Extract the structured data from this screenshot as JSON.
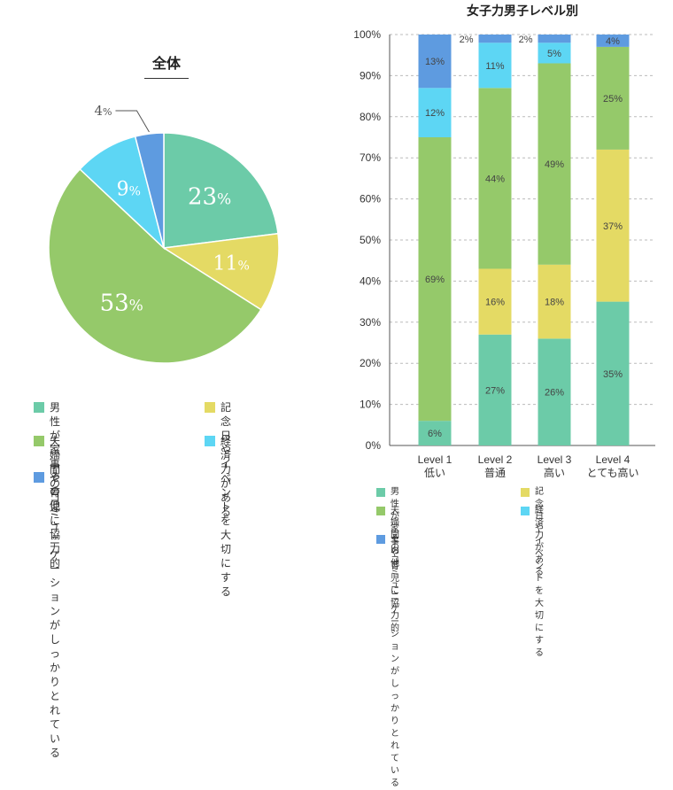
{
  "chart_data": [
    {
      "type": "pie",
      "title": "全体",
      "categories": [
        "男性が家事や育児に協力的",
        "記念日やイベントを大切にする",
        "夫婦間のコミュニケーションがしっかりとれている",
        "経済力がある",
        "その他"
      ],
      "values": [
        23,
        11,
        53,
        9,
        4
      ],
      "labels": [
        "23",
        "11",
        "53",
        "9",
        "4"
      ],
      "unit": "%",
      "colors": [
        "#6ccba8",
        "#e4da64",
        "#95c96a",
        "#5dd6f4",
        "#5e9be0"
      ]
    },
    {
      "type": "bar",
      "stacked": true,
      "title": "女子力男子レベル別",
      "categories": [
        {
          "line1": "Level 1",
          "line2": "低い"
        },
        {
          "line1": "Level 2",
          "line2": "普通"
        },
        {
          "line1": "Level 3",
          "line2": "高い"
        },
        {
          "line1": "Level 4",
          "line2": "とても高い"
        }
      ],
      "series": [
        {
          "name": "男性が家事や育児に協力的",
          "values": [
            6,
            27,
            26,
            35
          ]
        },
        {
          "name": "記念日やイベントを大切にする",
          "values": [
            0,
            16,
            18,
            37
          ]
        },
        {
          "name": "夫婦間のコミュニケーションがしっかりとれている",
          "values": [
            69,
            44,
            49,
            25
          ]
        },
        {
          "name": "経済力がある",
          "values": [
            12,
            11,
            5,
            0
          ]
        },
        {
          "name": "その他",
          "values": [
            13,
            2,
            2,
            4
          ]
        }
      ],
      "yticks": [
        "0%",
        "10%",
        "20%",
        "30%",
        "40%",
        "50%",
        "60%",
        "70%",
        "80%",
        "90%",
        "100%"
      ],
      "ylim": [
        0,
        100
      ],
      "unit": "%",
      "colors": [
        "#6ccba8",
        "#e4da64",
        "#95c96a",
        "#5dd6f4",
        "#5e9be0"
      ]
    }
  ],
  "pie_legend": [
    {
      "line1": "男性が家事や育児に",
      "line2": "協力的"
    },
    {
      "line1": "記念日やイベントを",
      "line2": "大切にする"
    },
    {
      "line1": "夫婦間のコミュニケーションが",
      "line2": "しっかりとれている"
    },
    {
      "line1": "経済力がある",
      "line2": ""
    },
    {
      "line1": "その他",
      "line2": ""
    }
  ],
  "bar_legend": [
    {
      "line1": "男性が家事や育児に協力的",
      "line2": ""
    },
    {
      "line1": "記念日やイベントを大切にする",
      "line2": ""
    },
    {
      "line1": "夫婦間のコミュニケーションが",
      "line2": "しっかりとれている"
    },
    {
      "line1": "経済力がある",
      "line2": ""
    },
    {
      "line1": "その他",
      "line2": ""
    }
  ]
}
